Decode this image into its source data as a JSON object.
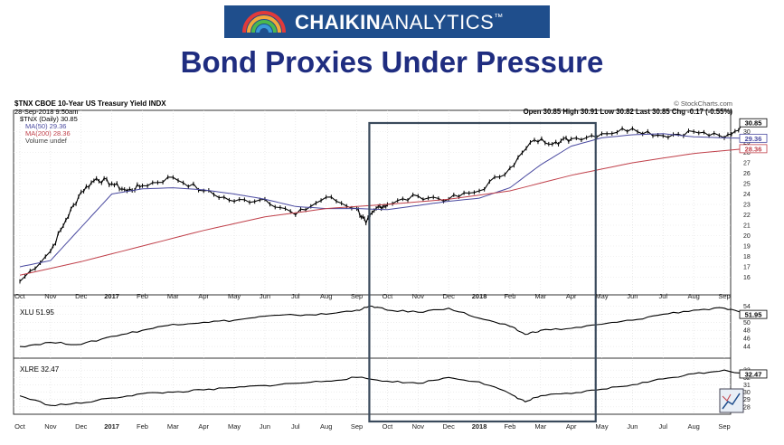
{
  "header": {
    "logo_word1": "CHAIKIN",
    "logo_word2": "ANALYTICS",
    "logo_mark": "™",
    "title": "Bond Proxies Under Pressure"
  },
  "colors": {
    "logo_bg": "#1f4e8c",
    "title": "#1f2d80",
    "price": "#000000",
    "ma50": "#4a4aa0",
    "ma200": "#c0404a",
    "highlight_box": "#3a4a5c"
  },
  "chart_header": {
    "symbol_line": "$TNX CBOE 10-Year US Treasury Yield INDX",
    "date_line": "28-Sep-2018 9:50am",
    "watermark": "© StockCharts.com",
    "ohlc": "Open 30.85  High 30.91  Low 30.82  Last 30.85  Chg -0.17 (-0.55%)",
    "legend": [
      "$TNX (Daily) 30.85",
      "MA(50) 29.36",
      "MA(200) 28.36",
      "Volume undef"
    ]
  },
  "chart_data": {
    "type": "line",
    "x_ticks": [
      "Oct",
      "Nov",
      "Dec",
      "2017",
      "Feb",
      "Mar",
      "Apr",
      "May",
      "Jun",
      "Jul",
      "Aug",
      "Sep",
      "Oct",
      "Nov",
      "Dec",
      "2018",
      "Feb",
      "Mar",
      "Apr",
      "May",
      "Jun",
      "Jul",
      "Aug",
      "Sep"
    ],
    "panels": [
      {
        "name": "$TNX",
        "ylim": [
          15,
          31
        ],
        "yticks": [
          16,
          17,
          18,
          19,
          20,
          21,
          22,
          23,
          24,
          25,
          26,
          27,
          28,
          29,
          30
        ],
        "series": [
          {
            "name": "$TNX (Daily) 30.85",
            "style": "ohlc",
            "x": [
              0,
              1,
              1.5,
              2,
              2.5,
              3,
              3.5,
              4,
              5,
              6,
              7,
              8,
              9,
              10,
              11,
              11.3,
              11.7,
              12,
              13,
              14,
              15,
              16,
              16.8,
              17.5,
              18,
              19,
              20,
              21,
              22,
              23,
              23.7
            ],
            "values": [
              15.6,
              18.5,
              21.5,
              24.2,
              25.5,
              25.0,
              24.3,
              24.8,
              25.6,
              24.3,
              23.3,
              23.5,
              22.0,
              23.7,
              22.6,
              21.2,
              22.8,
              23.0,
              23.8,
              23.5,
              24.3,
              26.5,
              29.2,
              29.0,
              29.3,
              29.8,
              30.3,
              29.6,
              30.0,
              29.4,
              30.85
            ]
          },
          {
            "name": "MA(50) 29.36",
            "x": [
              0,
              1,
              2,
              3,
              4,
              5,
              6,
              7,
              8,
              9,
              10,
              11,
              12,
              13,
              14,
              15,
              16,
              17,
              18,
              19,
              20,
              21,
              22,
              23,
              23.7
            ],
            "values": [
              17.0,
              17.6,
              20.8,
              24.0,
              24.5,
              24.6,
              24.4,
              24.0,
              23.5,
              22.8,
              22.6,
              22.6,
              22.5,
              22.9,
              23.3,
              23.6,
              24.6,
              26.8,
              28.6,
              29.4,
              29.7,
              29.8,
              29.5,
              29.4,
              29.36
            ]
          },
          {
            "name": "MA(200) 28.36",
            "x": [
              0,
              2,
              4,
              6,
              8,
              10,
              12,
              14,
              16,
              18,
              20,
              22,
              23.7
            ],
            "values": [
              16.2,
              17.5,
              19.0,
              20.5,
              21.8,
              22.6,
              23.0,
              23.5,
              24.3,
              25.8,
              27.0,
              27.9,
              28.36
            ]
          }
        ],
        "value_labels": [
          "30.85",
          "29.36",
          "28.36"
        ]
      },
      {
        "name": "XLU",
        "label": "XLU 51.95",
        "ylim": [
          42,
          55
        ],
        "yticks": [
          44,
          46,
          48,
          50,
          52,
          54
        ],
        "value_label": "51.95",
        "series": [
          {
            "name": "XLU 51.95",
            "x": [
              0,
              1,
              2,
              3,
              4,
              5,
              6,
              7,
              8,
              9,
              10,
              11,
              11.5,
              12,
              13,
              14,
              15,
              16,
              16.5,
              17,
              18,
              19,
              20,
              21,
              22,
              23,
              23.7
            ],
            "values": [
              44.0,
              45.0,
              44.5,
              46.5,
              48.0,
              49.5,
              50.0,
              50.5,
              51.5,
              51.8,
              52.0,
              53.0,
              54.0,
              53.0,
              52.5,
              53.5,
              51.0,
              49.0,
              47.0,
              48.0,
              48.5,
              49.5,
              50.5,
              52.0,
              53.0,
              53.5,
              51.95
            ]
          }
        ]
      },
      {
        "name": "XLRE",
        "label": "XLRE 32.47",
        "ylim": [
          27,
          34
        ],
        "yticks": [
          28,
          29,
          30,
          31,
          32,
          33
        ],
        "value_label": "32.47",
        "series": [
          {
            "name": "XLRE 32.47",
            "x": [
              0,
              1,
              2,
              3,
              4,
              5,
              6,
              7,
              8,
              9,
              10,
              11,
              12,
              13,
              14,
              15,
              16,
              16.5,
              17,
              18,
              19,
              20,
              21,
              22,
              23,
              23.7
            ],
            "values": [
              29.5,
              28.2,
              28.5,
              29.2,
              29.8,
              30.0,
              30.3,
              30.6,
              30.9,
              31.2,
              31.5,
              32.0,
              31.5,
              31.2,
              32.0,
              31.4,
              29.8,
              28.7,
              29.5,
              29.8,
              30.4,
              31.0,
              31.8,
              32.5,
              33.0,
              32.47
            ]
          }
        ]
      }
    ],
    "highlight": {
      "x_start": 12,
      "x_end": 18.8
    }
  }
}
